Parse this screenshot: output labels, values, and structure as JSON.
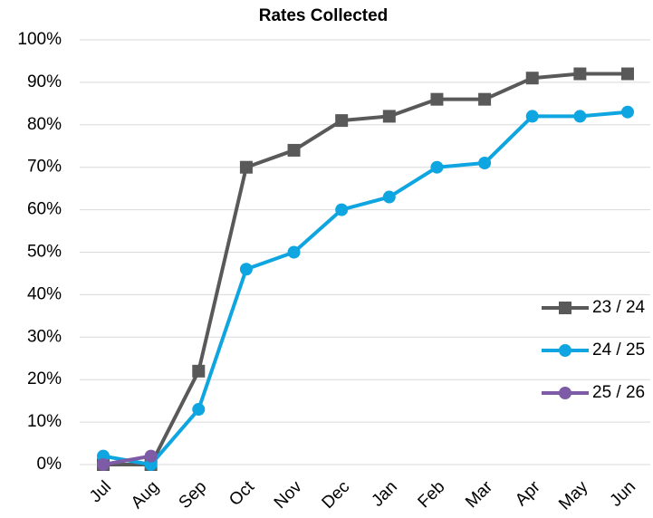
{
  "chart_data": {
    "type": "line",
    "title": "Rates Collected",
    "categories": [
      "Jul",
      "Aug",
      "Sep",
      "Oct",
      "Nov",
      "Dec",
      "Jan",
      "Feb",
      "Mar",
      "Apr",
      "May",
      "Jun"
    ],
    "series": [
      {
        "name": "23 / 24",
        "color": "#595959",
        "marker": "square",
        "values": [
          0,
          0,
          22,
          70,
          74,
          81,
          82,
          86,
          86,
          91,
          92,
          92
        ]
      },
      {
        "name": "24 / 25",
        "color": "#0ea5e0",
        "marker": "circle",
        "values": [
          2,
          0,
          13,
          46,
          50,
          60,
          63,
          70,
          71,
          82,
          82,
          83
        ]
      },
      {
        "name": "25 / 26",
        "color": "#7e5ba6",
        "marker": "circle",
        "values": [
          0,
          2,
          null,
          null,
          null,
          null,
          null,
          null,
          null,
          null,
          null,
          null
        ]
      }
    ],
    "ylim": [
      0,
      100
    ],
    "yticks": [
      {
        "value": 0,
        "label": "0%"
      },
      {
        "value": 10,
        "label": "10%"
      },
      {
        "value": 20,
        "label": "20%"
      },
      {
        "value": 30,
        "label": "30%"
      },
      {
        "value": 40,
        "label": "40%"
      },
      {
        "value": 50,
        "label": "50%"
      },
      {
        "value": 60,
        "label": "60%"
      },
      {
        "value": 70,
        "label": "70%"
      },
      {
        "value": 80,
        "label": "80%"
      },
      {
        "value": 90,
        "label": "90%"
      },
      {
        "value": 100,
        "label": "100%"
      }
    ],
    "grid": true,
    "legend": "right"
  }
}
